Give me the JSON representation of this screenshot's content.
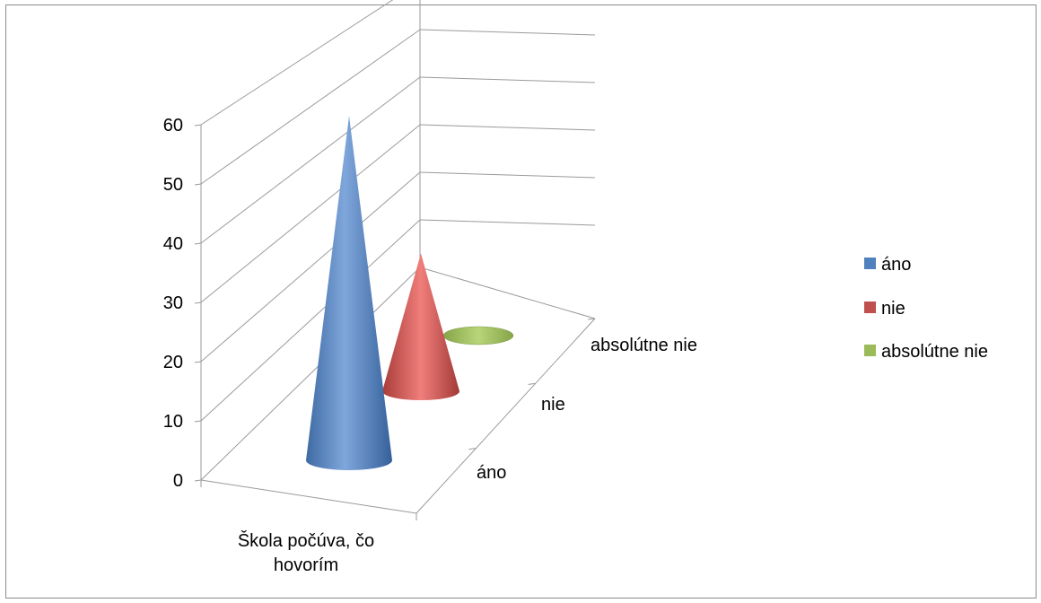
{
  "chart_data": {
    "type": "bar",
    "subtype": "3d-cone",
    "categories": [
      "Škola počúva, čo hovorím"
    ],
    "category_label_lines": [
      "Škola počúva, čo",
      "hovorím"
    ],
    "series": [
      {
        "name": "áno",
        "values": [
          60
        ],
        "color": "#4f81bd"
      },
      {
        "name": "nie",
        "values": [
          24
        ],
        "color": "#c0504d"
      },
      {
        "name": "absolútne nie",
        "values": [
          0
        ],
        "color": "#9bbb59"
      }
    ],
    "depth_axis_labels": [
      "áno",
      "nie",
      "absolútne nie"
    ],
    "y_ticks": [
      0,
      10,
      20,
      30,
      40,
      50,
      60
    ],
    "ylim": [
      0,
      60
    ],
    "title": "",
    "xlabel": "",
    "ylabel": "",
    "grid": true,
    "legend_position": "right"
  }
}
